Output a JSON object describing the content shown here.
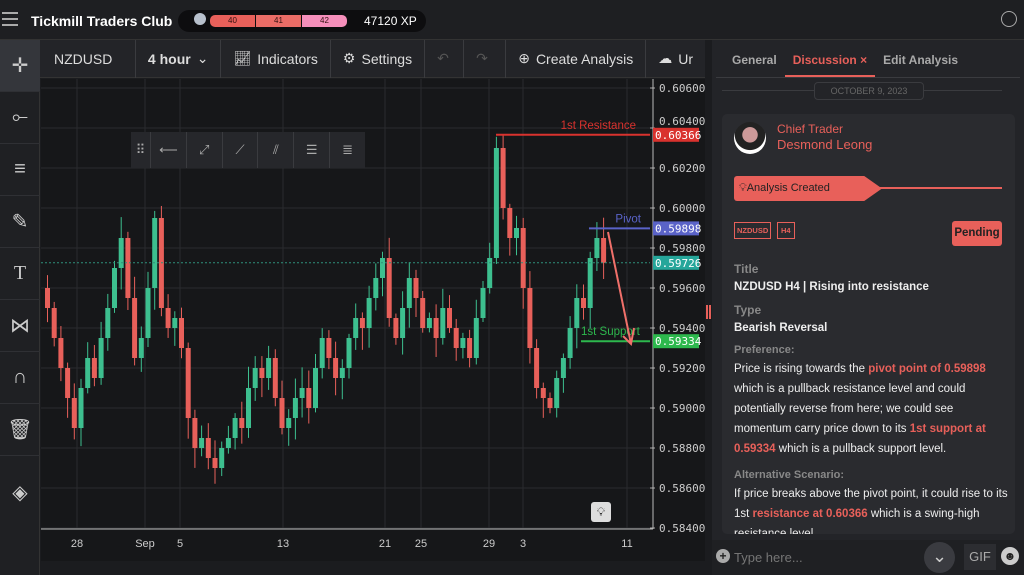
{
  "app": {
    "title": "Tickmill Traders Club",
    "levels": [
      "40",
      "41",
      "42"
    ],
    "xp": "47120 XP"
  },
  "toolbar": {
    "symbol": "NZDUSD",
    "interval": "4 hour",
    "indicators": "Indicators",
    "settings": "Settings",
    "create": "Create Analysis",
    "upload": "Ur"
  },
  "panel": {
    "tabs": [
      "General",
      "Discussion",
      "Edit Analysis"
    ],
    "close": "×",
    "date": "OCTOBER 9, 2023",
    "author_role": "Chief Trader",
    "author_name": "Desmond Leong",
    "event": "Analysis Created",
    "tags": [
      "NZDUSD",
      "H4"
    ],
    "status": "Pending",
    "title_label": "Title",
    "title": "NZDUSD H4 | Rising into resistance",
    "type_label": "Type",
    "type": "Bearish Reversal",
    "pref_label": "Preference:",
    "pref": [
      "Price is rising towards the ",
      "pivot point of 0.59898",
      " which is a pullback resistance level and could potentially reverse from here; we could see momentum carry price down to its ",
      "1st support at 0.59334",
      " which is a pullback support level."
    ],
    "alt_label": "Alternative Scenario:",
    "alt": [
      "If price breaks above the pivot point, it could rise to its 1st ",
      "resistance at 0.60366",
      " which is a swing-high resistance level."
    ],
    "input_placeholder": "Type here...",
    "gif": "GIF"
  },
  "chart_data": {
    "type": "candlestick",
    "symbol": "NZDUSD",
    "interval": "4 hour",
    "ylim": [
      0.584,
      0.606
    ],
    "yticks": [
      "0.60600",
      "0.60400",
      "0.60200",
      "0.60000",
      "0.59800",
      "0.59600",
      "0.59400",
      "0.59200",
      "0.59000",
      "0.58800",
      "0.58600",
      "0.58400"
    ],
    "xticks": [
      "28",
      "Sep",
      "5",
      "13",
      "21",
      "25",
      "29",
      "3",
      "11"
    ],
    "closes": [
      0.595,
      0.5935,
      0.592,
      0.5905,
      0.589,
      0.591,
      0.5925,
      0.5915,
      0.5935,
      0.595,
      0.597,
      0.5985,
      0.5955,
      0.5925,
      0.5935,
      0.596,
      0.5995,
      0.595,
      0.594,
      0.5945,
      0.593,
      0.5895,
      0.588,
      0.5885,
      0.5875,
      0.587,
      0.588,
      0.5885,
      0.5895,
      0.589,
      0.591,
      0.592,
      0.5915,
      0.5925,
      0.5905,
      0.589,
      0.5895,
      0.5905,
      0.591,
      0.59,
      0.592,
      0.5935,
      0.5925,
      0.5915,
      0.592,
      0.5935,
      0.5945,
      0.594,
      0.5955,
      0.5965,
      0.5975,
      0.5945,
      0.5935,
      0.595,
      0.5965,
      0.5955,
      0.594,
      0.5945,
      0.5935,
      0.595,
      0.594,
      0.593,
      0.5935,
      0.5925,
      0.5945,
      0.596,
      0.5975,
      0.603,
      0.6,
      0.5985,
      0.599,
      0.596,
      0.593,
      0.591,
      0.5905,
      0.59,
      0.5915,
      0.5925,
      0.594,
      0.5955,
      0.595,
      0.5975,
      0.5985,
      0.59726
    ],
    "levels": [
      {
        "name": "1st Resistance",
        "value": "0.60366",
        "color": "#d9322e"
      },
      {
        "name": "Pivot",
        "value": "0.59898",
        "color": "#5a63c8"
      },
      {
        "name": "1st Support",
        "value": "0.59334",
        "color": "#2db84d"
      }
    ],
    "current_price": "0.59726",
    "up_color": "#3dbf8f",
    "down_color": "#e8605a"
  }
}
